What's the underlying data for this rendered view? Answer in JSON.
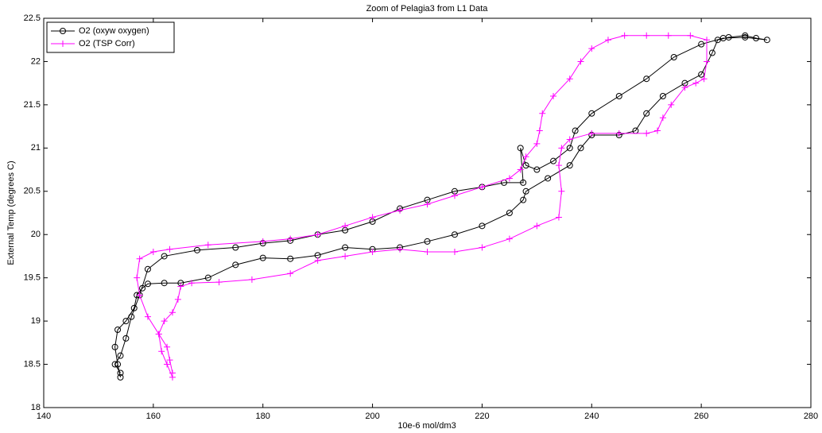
{
  "chart_data": {
    "type": "line",
    "title": "Zoom of Pelagia3 from L1 Data",
    "xlabel": "10e-6 mol/dm3",
    "ylabel": "External Temp (degrees C)",
    "xlim": [
      140,
      280
    ],
    "xticks": [
      140,
      160,
      180,
      200,
      220,
      240,
      260,
      280
    ],
    "ylim": [
      18,
      22.5
    ],
    "yticks": [
      18,
      18.5,
      19,
      19.5,
      20,
      20.5,
      21,
      21.5,
      22,
      22.5
    ],
    "legend": "upper left",
    "series": [
      {
        "name": "O2 (oxyw oxygen)",
        "color": "#000000",
        "marker": "o",
        "x": [
          154,
          153.5,
          153,
          153.5,
          155,
          156.5,
          157,
          158,
          159,
          162,
          165,
          170,
          175,
          180,
          185,
          190,
          195,
          200,
          205,
          210,
          215,
          220,
          225,
          227.5,
          228,
          232,
          236,
          238,
          240,
          245,
          248,
          250,
          253,
          257,
          260,
          262,
          263,
          265,
          268,
          270,
          272,
          268,
          264,
          260,
          255,
          250,
          245,
          240,
          237,
          236,
          233,
          230,
          228,
          227,
          227.5,
          224,
          220,
          215,
          210,
          205,
          200,
          195,
          190,
          185,
          180,
          175,
          168,
          162,
          159,
          157.5,
          156,
          155,
          154,
          153,
          154
        ],
        "y": [
          18.35,
          18.5,
          18.7,
          18.9,
          19.0,
          19.15,
          19.3,
          19.38,
          19.43,
          19.44,
          19.44,
          19.5,
          19.65,
          19.73,
          19.72,
          19.76,
          19.85,
          19.83,
          19.85,
          19.92,
          20.0,
          20.1,
          20.25,
          20.4,
          20.5,
          20.65,
          20.8,
          21.0,
          21.15,
          21.15,
          21.2,
          21.4,
          21.6,
          21.75,
          21.85,
          22.1,
          22.25,
          22.28,
          22.3,
          22.27,
          22.25,
          22.28,
          22.27,
          22.2,
          22.05,
          21.8,
          21.6,
          21.4,
          21.2,
          21.0,
          20.85,
          20.75,
          20.8,
          21.0,
          20.6,
          20.6,
          20.55,
          20.5,
          20.4,
          20.3,
          20.15,
          20.05,
          20.0,
          19.93,
          19.9,
          19.85,
          19.82,
          19.75,
          19.6,
          19.3,
          19.05,
          18.8,
          18.6,
          18.5,
          18.4
        ]
      },
      {
        "name": "O2 (TSP Corr)",
        "color": "#ff00ff",
        "marker": "+",
        "x": [
          163.5,
          162.5,
          161.5,
          161,
          162,
          163.5,
          164.5,
          165,
          167,
          172,
          178,
          185,
          190,
          195,
          200,
          205,
          210,
          215,
          220,
          225,
          230,
          234,
          234.5,
          234,
          234.5,
          236,
          240,
          245,
          250,
          252,
          253,
          254.5,
          257,
          259,
          260.5,
          261,
          261,
          258,
          254,
          250,
          246,
          243,
          240,
          238,
          236,
          233,
          231,
          230.5,
          230,
          228,
          227,
          225,
          220,
          215,
          210,
          205,
          200,
          195,
          190,
          185,
          180,
          170,
          163,
          160,
          157.5,
          157,
          157.5,
          159,
          161,
          162.5,
          163,
          163.5
        ],
        "y": [
          18.35,
          18.5,
          18.65,
          18.85,
          19.0,
          19.1,
          19.25,
          19.4,
          19.44,
          19.45,
          19.48,
          19.55,
          19.7,
          19.75,
          19.8,
          19.83,
          19.8,
          19.8,
          19.85,
          19.95,
          20.1,
          20.2,
          20.5,
          20.8,
          21.0,
          21.1,
          21.17,
          21.17,
          21.17,
          21.2,
          21.35,
          21.5,
          21.7,
          21.75,
          21.8,
          22.0,
          22.25,
          22.3,
          22.3,
          22.3,
          22.3,
          22.25,
          22.15,
          22.0,
          21.8,
          21.6,
          21.4,
          21.2,
          21.05,
          20.9,
          20.75,
          20.65,
          20.55,
          20.45,
          20.35,
          20.28,
          20.2,
          20.1,
          20.0,
          19.95,
          19.92,
          19.88,
          19.83,
          19.8,
          19.72,
          19.5,
          19.3,
          19.05,
          18.85,
          18.7,
          18.55,
          18.4
        ]
      }
    ]
  }
}
